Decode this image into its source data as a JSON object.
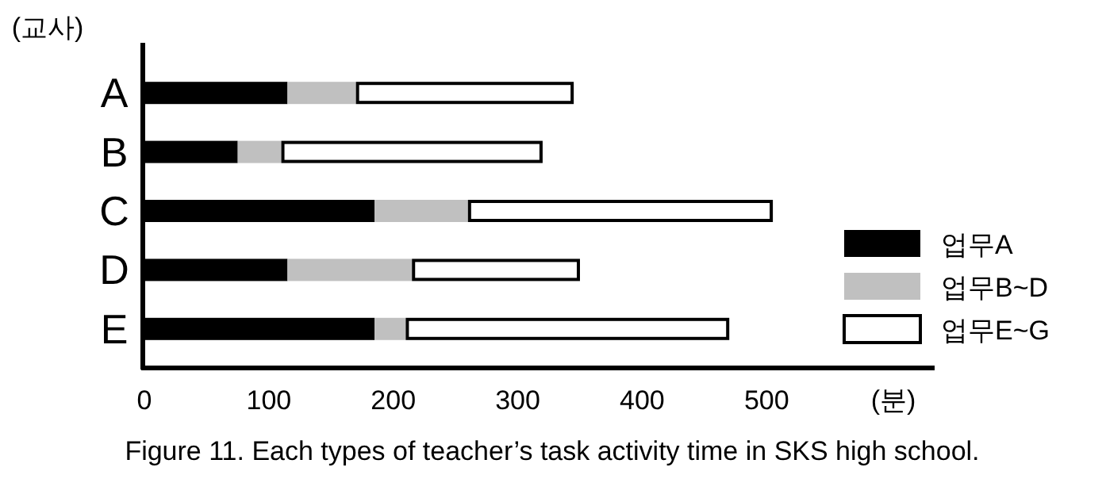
{
  "chart_data": {
    "type": "bar",
    "orientation": "horizontal",
    "stacked": true,
    "categories": [
      "A",
      "B",
      "C",
      "D",
      "E"
    ],
    "series": [
      {
        "name": "업무A",
        "color": "#000000",
        "values": [
          115,
          75,
          185,
          115,
          185
        ]
      },
      {
        "name": "업무B~D",
        "color": "#c0c0c0",
        "values": [
          55,
          35,
          75,
          100,
          25
        ]
      },
      {
        "name": "업무E~G",
        "color": "#ffffff",
        "values": [
          175,
          210,
          245,
          135,
          260
        ]
      }
    ],
    "xlim": [
      0,
      635
    ],
    "xticks": [
      0,
      100,
      200,
      300,
      400,
      500
    ],
    "xlabel": "(분)",
    "ylabel": "(교사)",
    "legend": "bottom right",
    "annotations": [
      "Figure 11. Each types of teacher’s task activity time in SKS high school."
    ]
  }
}
